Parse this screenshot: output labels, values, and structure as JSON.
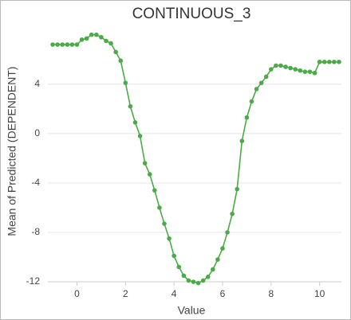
{
  "chart_data": {
    "type": "line",
    "title": "CONTINUOUS_3",
    "x_label": "Value",
    "y_label": "Mean of Predicted (DEPENDENT)",
    "x": [
      -1.0,
      -0.8,
      -0.6,
      -0.4,
      -0.2,
      0.0,
      0.2,
      0.4,
      0.6,
      0.8,
      1.0,
      1.2,
      1.4,
      1.6,
      1.8,
      2.0,
      2.2,
      2.4,
      2.6,
      2.8,
      3.0,
      3.2,
      3.4,
      3.6,
      3.8,
      4.0,
      4.2,
      4.4,
      4.6,
      4.8,
      5.0,
      5.2,
      5.4,
      5.6,
      5.8,
      6.0,
      6.2,
      6.4,
      6.6,
      6.8,
      7.0,
      7.2,
      7.4,
      7.6,
      7.8,
      8.0,
      8.2,
      8.4,
      8.6,
      8.8,
      9.0,
      9.2,
      9.4,
      9.6,
      9.8,
      10.0,
      10.2,
      10.4,
      10.6,
      10.8
    ],
    "series": [
      {
        "name": "Mean of Predicted",
        "color": "#4caa48",
        "values": [
          7.2,
          7.2,
          7.2,
          7.2,
          7.2,
          7.2,
          7.6,
          7.7,
          8.0,
          8.0,
          7.8,
          7.5,
          7.3,
          6.6,
          5.9,
          4.1,
          2.2,
          0.9,
          -0.2,
          -2.4,
          -3.3,
          -4.6,
          -6.0,
          -7.3,
          -8.5,
          -9.9,
          -10.8,
          -11.5,
          -11.9,
          -12.0,
          -12.1,
          -11.9,
          -11.6,
          -11.0,
          -10.2,
          -9.3,
          -8.0,
          -6.5,
          -4.5,
          -0.6,
          1.3,
          2.6,
          3.6,
          4.1,
          4.6,
          5.2,
          5.5,
          5.5,
          5.4,
          5.3,
          5.2,
          5.1,
          5.0,
          5.0,
          4.9,
          5.8,
          5.8,
          5.8,
          5.8,
          5.8
        ]
      }
    ],
    "xlim": [
      -1.2,
      10.9
    ],
    "ylim": [
      -12,
      9.2
    ],
    "xticks": [
      0,
      2,
      4,
      6,
      8,
      10
    ],
    "yticks": [
      -12,
      -8,
      -4,
      0,
      4
    ],
    "grid": true
  }
}
